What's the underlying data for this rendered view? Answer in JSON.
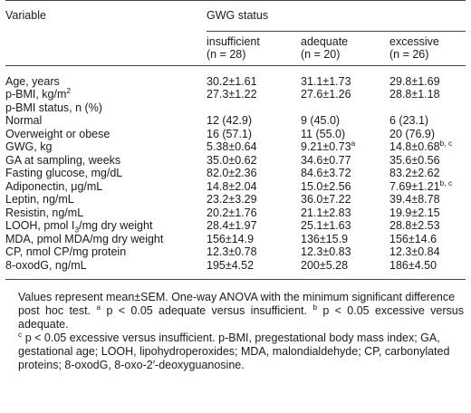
{
  "header": {
    "variable": "Variable",
    "group": "GWG status",
    "columns": [
      {
        "name": "insufficient",
        "n_label": "(n = 28)"
      },
      {
        "name": "adequate",
        "n_label": "(n = 20)"
      },
      {
        "name": "excessive",
        "n_label": "(n = 26)"
      }
    ]
  },
  "rows": [
    {
      "label": "Age, years",
      "values": [
        "30.2±1.61",
        "31.1±1.73",
        "29.8±1.69"
      ],
      "sups": [
        "",
        "",
        ""
      ]
    },
    {
      "label": "p-BMI, kg/m",
      "label_sup": "2",
      "values": [
        "27.3±1.22",
        "27.6±1.26",
        "28.8±1.18"
      ],
      "sups": [
        "",
        "",
        ""
      ]
    },
    {
      "label": "p-BMI status, n (%)",
      "values": [
        "",
        "",
        ""
      ],
      "sups": [
        "",
        "",
        ""
      ]
    },
    {
      "label": "Normal",
      "indent": true,
      "values": [
        "12 (42.9)",
        "9 (45.0)",
        "6 (23.1)"
      ],
      "sups": [
        "",
        "",
        ""
      ]
    },
    {
      "label": "Overweight or obese",
      "indent": true,
      "values": [
        "16 (57.1)",
        "11 (55.0)",
        "20 (76.9)"
      ],
      "sups": [
        "",
        "",
        ""
      ]
    },
    {
      "label": "GWG, kg",
      "values": [
        "5.38±0.64",
        "9.21±0.73",
        "14.8±0.68"
      ],
      "sups": [
        "",
        "a",
        "b, c"
      ]
    },
    {
      "label": "GA at sampling, weeks",
      "values": [
        "35.0±0.62",
        "34.6±0.77",
        "35.6±0.56"
      ],
      "sups": [
        "",
        "",
        ""
      ]
    },
    {
      "label": "Fasting glucose, mg/dL",
      "values": [
        "82.0±2.36",
        "84.6±3.72",
        "83.2±2.62"
      ],
      "sups": [
        "",
        "",
        ""
      ]
    },
    {
      "label": "Adiponectin, μg/mL",
      "values": [
        "14.8±2.04",
        "15.0±2.56",
        "7.69±1.21"
      ],
      "sups": [
        "",
        "",
        "b, c"
      ]
    },
    {
      "label": "Leptin, ng/mL",
      "values": [
        "23.2±3.29",
        "36.0±7.22",
        "39.4±8.78"
      ],
      "sups": [
        "",
        "",
        ""
      ]
    },
    {
      "label": "Resistin, ng/mL",
      "values": [
        "20.2±1.76",
        "21.1±2.83",
        "19.9±2.15"
      ],
      "sups": [
        "",
        "",
        ""
      ]
    },
    {
      "label": "LOOH, pmol I",
      "label_sub": "3",
      "label_tail": "/mg dry weight",
      "values": [
        "28.4±1.97",
        "25.1±1.63",
        "28.8±2.53"
      ],
      "sups": [
        "",
        "",
        ""
      ]
    },
    {
      "label": "MDA, pmol MDA/mg dry weight",
      "values": [
        "156±14.9",
        "136±15.9",
        "156±14.6"
      ],
      "sups": [
        "",
        "",
        ""
      ]
    },
    {
      "label": "CP, nmol CP/mg protein",
      "values": [
        "12.3±0.78",
        "12.3±0.83",
        "12.3±0.84"
      ],
      "sups": [
        "",
        "",
        ""
      ]
    },
    {
      "label": "8-oxodG, ng/mL",
      "values": [
        "195±4.52",
        "200±5.28",
        "186±4.50"
      ],
      "sups": [
        "",
        "",
        ""
      ]
    }
  ],
  "notes": {
    "line1": "Values represent mean±SEM. One-way ANOVA with the minimum significant difference",
    "line2a": "post hoc test. ",
    "sup_a": "a",
    "line2b": " p < 0.05 adequate versus insufficient. ",
    "sup_b": "b",
    "line2c": " p < 0.05 excessive versus adequate.",
    "sup_c": "c",
    "line3": " p < 0.05 excessive versus insufficient. p-BMI, pregestational body mass index; GA,",
    "line4": "gestational age; LOOH, lipohydroperoxides; MDA, malondialdehyde; CP, carbonylated",
    "line5": "proteins; 8-oxodG, 8-oxo-2′-deoxyguanosine."
  }
}
